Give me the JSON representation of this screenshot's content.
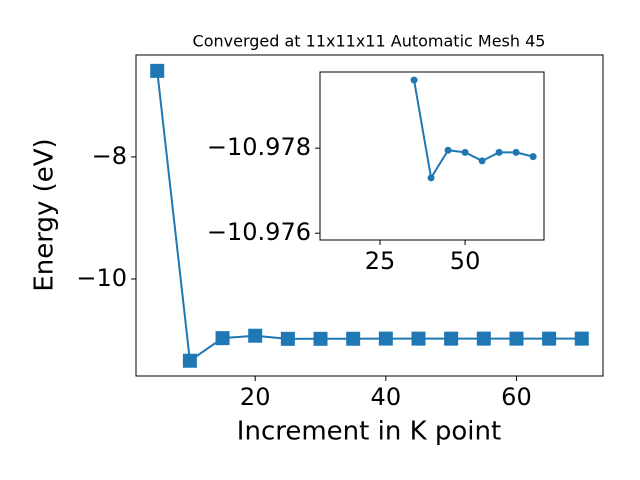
{
  "chart_data": [
    {
      "type": "line",
      "title": "Converged at 11x11x11 Automatic Mesh 45",
      "xlabel": "Increment in K point",
      "ylabel": "Energy (eV)",
      "x": [
        5,
        10,
        15,
        20,
        25,
        30,
        35,
        40,
        45,
        50,
        55,
        60,
        65,
        70
      ],
      "series": [
        {
          "color": "#1f77b4",
          "marker": "square",
          "values": [
            -6.59,
            -11.34,
            -10.97,
            -10.93,
            -10.981,
            -10.9805,
            -10.9796,
            -10.9773,
            -10.97795,
            -10.9779,
            -10.9777,
            -10.9779,
            -10.9779,
            -10.9778
          ]
        }
      ],
      "xlim": [
        1.75,
        73.25
      ],
      "ylim": [
        -11.59,
        -6.33
      ],
      "xticks": [
        20,
        40,
        60
      ],
      "yticks": [
        {
          "value": -10,
          "label": "−10"
        },
        {
          "value": -8,
          "label": "−8"
        }
      ]
    },
    {
      "type": "line",
      "x": [
        35,
        40,
        45,
        50,
        55,
        60,
        65,
        70
      ],
      "series": [
        {
          "color": "#1f77b4",
          "marker": "circle",
          "values": [
            -10.9796,
            -10.9773,
            -10.97795,
            -10.9779,
            -10.9777,
            -10.9779,
            -10.9779,
            -10.9778
          ]
        }
      ],
      "xlim": [
        7.35,
        73.2
      ],
      "ylim": [
        -10.97584,
        -10.97979
      ],
      "xticks": [
        25,
        50
      ],
      "yticks": [
        {
          "value": -10.978,
          "label": "−10.978"
        },
        {
          "value": -10.976,
          "label": "−10.976"
        }
      ]
    }
  ]
}
